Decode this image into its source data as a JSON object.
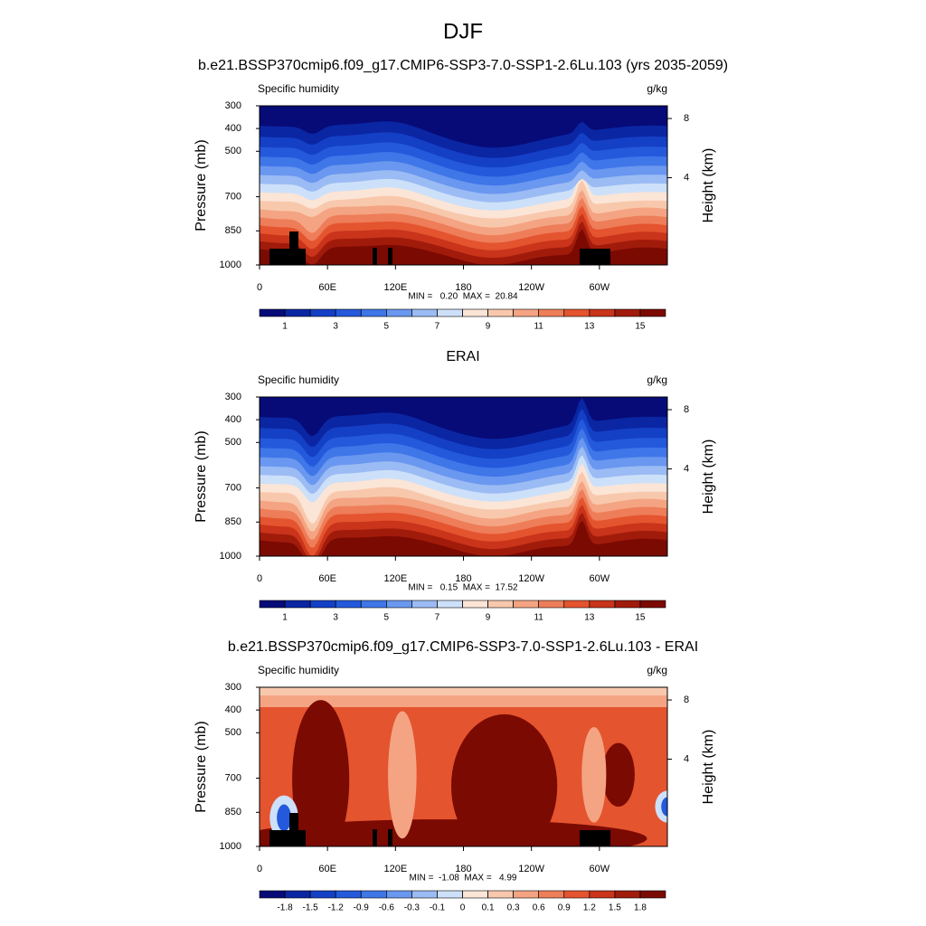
{
  "title": "DJF",
  "chart_data": [
    {
      "type": "contour",
      "title": "b.e21.BSSP370cmip6.f09_g17.CMIP6-SSP3-7.0-SSP1-2.6Lu.103 (yrs 2035-2059)",
      "left_label": "Specific humidity",
      "right_label": "g/kg",
      "ylabel": "Pressure (mb)",
      "y2label": "Height (km)",
      "xlim": [
        0,
        360
      ],
      "xticks": [
        0,
        {
          "value": 60,
          "label": "60E"
        },
        {
          "value": 120,
          "label": "120E"
        },
        180,
        {
          "value": 240,
          "label": "120W"
        },
        {
          "value": 300,
          "label": "60W"
        }
      ],
      "ylim": [
        1000,
        300
      ],
      "yticks": [
        300,
        400,
        500,
        700,
        850,
        1000
      ],
      "y2lim": [
        0.11,
        9.16
      ],
      "y2ticks": [
        8,
        4
      ],
      "stats": "MIN =   0.20  MAX =  20.84",
      "colorbar": {
        "levels": [
          1,
          2,
          3,
          4,
          5,
          6,
          7,
          8,
          9,
          10,
          11,
          12,
          13,
          14,
          15
        ],
        "labels": [
          1,
          3,
          5,
          7,
          9,
          11,
          13,
          15
        ],
        "colors": [
          "#060b78",
          "#0b26a3",
          "#1440c6",
          "#2459dc",
          "#3f76e8",
          "#6a97ef",
          "#9bbbf4",
          "#cde0f9",
          "#fbe5d6",
          "#f8c8ad",
          "#f4a482",
          "#ee7d59",
          "#e4542f",
          "#c9341a",
          "#a11b0b",
          "#7b0a03"
        ]
      }
    },
    {
      "type": "contour",
      "title": "ERAI",
      "left_label": "Specific humidity",
      "right_label": "g/kg",
      "ylabel": "Pressure (mb)",
      "y2label": "Height (km)",
      "xlim": [
        0,
        360
      ],
      "xticks": [
        0,
        {
          "value": 60,
          "label": "60E"
        },
        {
          "value": 120,
          "label": "120E"
        },
        180,
        {
          "value": 240,
          "label": "120W"
        },
        {
          "value": 300,
          "label": "60W"
        }
      ],
      "ylim": [
        1000,
        300
      ],
      "yticks": [
        300,
        400,
        500,
        700,
        850,
        1000
      ],
      "y2lim": [
        0.11,
        9.16
      ],
      "y2ticks": [
        8,
        4
      ],
      "stats": "MIN =   0.15  MAX =  17.52",
      "colorbar": {
        "levels": [
          1,
          2,
          3,
          4,
          5,
          6,
          7,
          8,
          9,
          10,
          11,
          12,
          13,
          14,
          15
        ],
        "labels": [
          1,
          3,
          5,
          7,
          9,
          11,
          13,
          15
        ],
        "colors": [
          "#060b78",
          "#0b26a3",
          "#1440c6",
          "#2459dc",
          "#3f76e8",
          "#6a97ef",
          "#9bbbf4",
          "#cde0f9",
          "#fbe5d6",
          "#f8c8ad",
          "#f4a482",
          "#ee7d59",
          "#e4542f",
          "#c9341a",
          "#a11b0b",
          "#7b0a03"
        ]
      }
    },
    {
      "type": "contour",
      "title": "b.e21.BSSP370cmip6.f09_g17.CMIP6-SSP3-7.0-SSP1-2.6Lu.103 - ERAI",
      "left_label": "Specific humidity",
      "right_label": "g/kg",
      "ylabel": "Pressure (mb)",
      "y2label": "Height (km)",
      "xlim": [
        0,
        360
      ],
      "xticks": [
        0,
        {
          "value": 60,
          "label": "60E"
        },
        {
          "value": 120,
          "label": "120E"
        },
        180,
        {
          "value": 240,
          "label": "120W"
        },
        {
          "value": 300,
          "label": "60W"
        }
      ],
      "ylim": [
        1000,
        300
      ],
      "yticks": [
        300,
        400,
        500,
        700,
        850,
        1000
      ],
      "y2lim": [
        0.11,
        9.16
      ],
      "y2ticks": [
        8,
        4
      ],
      "stats": "MIN =  -1.08  MAX =   4.99",
      "colorbar": {
        "levels": [
          -1.8,
          -1.5,
          -1.2,
          -0.9,
          -0.6,
          -0.3,
          -0.1,
          0,
          0.1,
          0.3,
          0.6,
          0.9,
          1.2,
          1.5,
          1.8
        ],
        "labels": [
          -1.8,
          -1.5,
          -1.2,
          -0.9,
          -0.6,
          -0.3,
          -0.1,
          0,
          0.1,
          0.3,
          0.6,
          0.9,
          1.2,
          1.5,
          1.8
        ],
        "colors": [
          "#060b78",
          "#0b26a3",
          "#1440c6",
          "#2459dc",
          "#3f76e8",
          "#6a97ef",
          "#9bbbf4",
          "#cde0f9",
          "#fbe5d6",
          "#f8c8ad",
          "#f4a482",
          "#ee7d59",
          "#e4542f",
          "#c9341a",
          "#a11b0b",
          "#7b0a03"
        ]
      }
    }
  ]
}
